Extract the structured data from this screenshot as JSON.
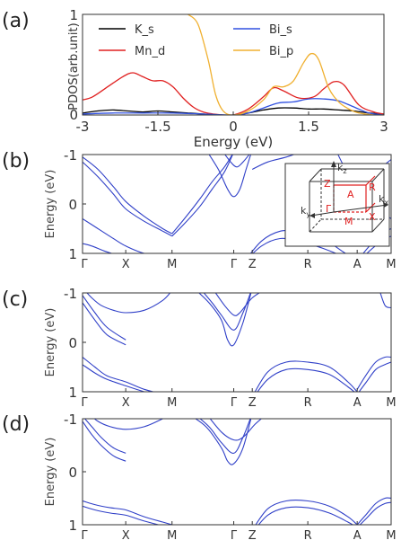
{
  "panels": {
    "a": {
      "label": "(a)",
      "chart_data": {
        "type": "line",
        "xlabel": "Energy (eV)",
        "ylabel": "PDOS(arb.unit)",
        "xlim": [
          -3,
          3
        ],
        "ylim": [
          0,
          1
        ],
        "xticks": [
          -3,
          -1.5,
          0,
          1.5,
          3
        ],
        "xtick_labels": [
          "-3",
          "-1.5",
          "0",
          "1.5",
          "3"
        ],
        "yticks": [
          0,
          1
        ],
        "ytick_labels": [
          "0",
          "1"
        ],
        "legend": "top, two columns",
        "series": [
          {
            "name": "K_s",
            "color": "#000000",
            "x": [
              -3,
              -2.7,
              -2.4,
              -2.1,
              -1.8,
              -1.5,
              -1.2,
              -0.9,
              -0.6,
              -0.3,
              0,
              0.3,
              0.6,
              0.9,
              1.2,
              1.5,
              1.8,
              2.1,
              2.4,
              2.7,
              3
            ],
            "y": [
              0.02,
              0.04,
              0.05,
              0.04,
              0.03,
              0.04,
              0.03,
              0.02,
              0.01,
              0.0,
              0.0,
              0.02,
              0.05,
              0.07,
              0.07,
              0.06,
              0.06,
              0.05,
              0.04,
              0.02,
              0.01
            ]
          },
          {
            "name": "Mn_d",
            "color": "#e02020",
            "x": [
              -3,
              -2.8,
              -2.5,
              -2.2,
              -2.0,
              -1.8,
              -1.6,
              -1.4,
              -1.2,
              -1.0,
              -0.8,
              -0.6,
              -0.4,
              -0.2,
              0,
              0.3,
              0.6,
              0.8,
              1.0,
              1.3,
              1.6,
              1.8,
              2.0,
              2.2,
              2.5,
              2.8,
              3
            ],
            "y": [
              0.15,
              0.18,
              0.28,
              0.38,
              0.42,
              0.38,
              0.34,
              0.34,
              0.28,
              0.17,
              0.08,
              0.03,
              0.01,
              0.0,
              0.0,
              0.06,
              0.18,
              0.27,
              0.24,
              0.17,
              0.18,
              0.26,
              0.33,
              0.3,
              0.1,
              0.03,
              0.01
            ]
          },
          {
            "name": "Bi_s",
            "color": "#3050e0",
            "x": [
              -3,
              -2.4,
              -1.8,
              -1.2,
              -0.6,
              0,
              0.3,
              0.6,
              0.9,
              1.2,
              1.5,
              1.8,
              2.1,
              2.4,
              2.7,
              3
            ],
            "y": [
              0.01,
              0.02,
              0.02,
              0.02,
              0.01,
              0.0,
              0.02,
              0.07,
              0.12,
              0.13,
              0.16,
              0.16,
              0.14,
              0.08,
              0.02,
              0.0
            ]
          },
          {
            "name": "Bi_p",
            "color": "#f0b030",
            "x": [
              -0.9,
              -0.7,
              -0.5,
              -0.35,
              -0.2,
              0,
              0.3,
              0.6,
              0.8,
              1.0,
              1.2,
              1.4,
              1.55,
              1.7,
              1.9,
              2.1,
              2.3,
              2.5,
              2.8,
              3
            ],
            "y": [
              1.0,
              0.9,
              0.55,
              0.2,
              0.04,
              0.0,
              0.04,
              0.15,
              0.28,
              0.28,
              0.34,
              0.52,
              0.61,
              0.55,
              0.27,
              0.13,
              0.06,
              0.02,
              0.0,
              0.0
            ]
          }
        ]
      }
    },
    "b": {
      "label": "(b)",
      "chart_data": {
        "type": "line",
        "ylabel": "Energy (eV)",
        "ylim": [
          -1,
          1
        ],
        "yticks": [
          -1,
          0,
          1
        ],
        "ytick_labels": [
          "-1",
          "0",
          "1"
        ],
        "kpoints": [
          "Γ",
          "X",
          "M",
          "Γ",
          "Z",
          "R",
          "A",
          "M"
        ],
        "kpos": [
          0,
          0.14,
          0.29,
          0.49,
          0.55,
          0.73,
          0.89,
          1.0
        ],
        "bands": [
          {
            "x": [
              0,
              0.05,
              0.1,
              0.14,
              0.2,
              0.26,
              0.29
            ],
            "y": [
              -0.95,
              -0.7,
              -0.35,
              -0.05,
              0.25,
              0.5,
              0.6
            ]
          },
          {
            "x": [
              0,
              0.05,
              0.1,
              0.14,
              0.2,
              0.26,
              0.29
            ],
            "y": [
              -0.85,
              -0.55,
              -0.2,
              0.1,
              0.35,
              0.55,
              0.65
            ]
          },
          {
            "x": [
              0,
              0.03,
              0.07,
              0.12,
              0.2,
              0.29
            ],
            "y": [
              0.8,
              0.85,
              0.95,
              1.05,
              1.2,
              1.3
            ]
          },
          {
            "x": [
              0,
              0.05,
              0.1,
              0.14,
              0.2,
              0.29
            ],
            "y": [
              0.3,
              0.5,
              0.7,
              0.85,
              1.0,
              1.1
            ]
          },
          {
            "x": [
              0.29,
              0.33,
              0.38,
              0.42,
              0.46,
              0.49
            ],
            "y": [
              0.6,
              0.3,
              -0.1,
              -0.45,
              -0.75,
              -1.05
            ]
          },
          {
            "x": [
              0.29,
              0.33,
              0.38,
              0.42,
              0.46,
              0.49
            ],
            "y": [
              0.65,
              0.4,
              0.05,
              -0.3,
              -0.65,
              -1.05
            ]
          },
          {
            "x": [
              0.4,
              0.44,
              0.47,
              0.49,
              0.51,
              0.53,
              0.55
            ],
            "y": [
              -1.1,
              -0.7,
              -0.3,
              -0.15,
              -0.3,
              -0.7,
              -1.1
            ]
          },
          {
            "x": [
              0.45,
              0.48,
              0.5,
              0.52,
              0.54,
              0.55
            ],
            "y": [
              -1.1,
              -0.85,
              -0.75,
              -0.85,
              -1.0,
              -1.1
            ]
          },
          {
            "x": [
              0.52,
              0.58,
              0.64,
              0.7,
              0.73,
              0.78,
              0.84,
              0.89
            ],
            "y": [
              1.2,
              0.75,
              0.55,
              0.55,
              0.6,
              0.7,
              0.95,
              1.15
            ]
          },
          {
            "x": [
              0.52,
              0.58,
              0.64,
              0.7,
              0.73,
              0.78,
              0.84,
              0.89
            ],
            "y": [
              1.2,
              0.85,
              0.7,
              0.75,
              0.8,
              0.9,
              1.05,
              1.2
            ]
          },
          {
            "x": [
              0.55,
              0.6,
              0.66,
              0.73
            ],
            "y": [
              -0.7,
              -0.85,
              -0.95,
              -1.1
            ]
          },
          {
            "x": [
              0.89,
              0.93,
              0.97,
              1.0
            ],
            "y": [
              1.15,
              0.85,
              0.6,
              0.5
            ]
          },
          {
            "x": [
              0.89,
              0.93,
              0.97,
              1.0
            ],
            "y": [
              1.2,
              0.95,
              0.75,
              0.65
            ]
          },
          {
            "x": [
              0.89,
              0.94,
              1.0
            ],
            "y": [
              -0.3,
              -0.6,
              -0.9
            ]
          },
          {
            "x": [
              0.82,
              0.86,
              0.89,
              0.94,
              1.0
            ],
            "y": [
              -1.1,
              -0.6,
              -0.3,
              0.0,
              0.3
            ]
          }
        ]
      },
      "inset": {
        "axis_labels": {
          "kz": "k",
          "kz_sub": "z",
          "ky": "k",
          "ky_sub": "y",
          "kx": "k",
          "kx_sub": "x"
        },
        "points": {
          "gamma": "Γ",
          "z": "Z",
          "a": "A",
          "r": "R",
          "m": "M",
          "x": "X"
        },
        "highlight_color": "#e02020"
      }
    },
    "c": {
      "label": "(c)",
      "chart_data": {
        "type": "line",
        "ylabel": "Energy (eV)",
        "ylim": [
          -1,
          1
        ],
        "yticks": [
          -1,
          0,
          1
        ],
        "ytick_labels": [
          "-1",
          "0",
          "1"
        ],
        "kpoints": [
          "Γ",
          "X",
          "M",
          "Γ",
          "Z",
          "R",
          "A",
          "M"
        ],
        "kpos": [
          0,
          0.14,
          0.29,
          0.49,
          0.55,
          0.73,
          0.89,
          1.0
        ],
        "bands": [
          {
            "x": [
              0,
              0.04,
              0.08,
              0.14
            ],
            "y": [
              -0.95,
              -0.6,
              -0.3,
              -0.05
            ]
          },
          {
            "x": [
              0,
              0.04,
              0.08,
              0.14
            ],
            "y": [
              -0.8,
              -0.45,
              -0.15,
              0.05
            ]
          },
          {
            "x": [
              0,
              0.03,
              0.06,
              0.1,
              0.14,
              0.2,
              0.26,
              0.29
            ],
            "y": [
              -1.1,
              -0.9,
              -0.75,
              -0.65,
              -0.6,
              -0.65,
              -0.85,
              -1.05
            ]
          },
          {
            "x": [
              0,
              0.04,
              0.08,
              0.14,
              0.2,
              0.26,
              0.29
            ],
            "y": [
              0.3,
              0.5,
              0.68,
              0.8,
              0.95,
              1.05,
              1.1
            ]
          },
          {
            "x": [
              0,
              0.04,
              0.08,
              0.14,
              0.2,
              0.26,
              0.29
            ],
            "y": [
              0.45,
              0.62,
              0.75,
              0.88,
              1.0,
              1.1,
              1.15
            ]
          },
          {
            "x": [
              0.36,
              0.41,
              0.45,
              0.47,
              0.49,
              0.52,
              0.55
            ],
            "y": [
              -1.1,
              -0.8,
              -0.45,
              -0.05,
              0.05,
              -0.4,
              -1.1
            ]
          },
          {
            "x": [
              0.38,
              0.42,
              0.45,
              0.49,
              0.52,
              0.55
            ],
            "y": [
              -1.1,
              -0.8,
              -0.55,
              -0.25,
              -0.6,
              -1.1
            ]
          },
          {
            "x": [
              0.42,
              0.46,
              0.49,
              0.51,
              0.55,
              0.6
            ],
            "y": [
              -1.1,
              -0.75,
              -0.55,
              -0.6,
              -0.9,
              -1.1
            ]
          },
          {
            "x": [
              0.55,
              0.6,
              0.66,
              0.73,
              0.8,
              0.86,
              0.89
            ],
            "y": [
              1.1,
              0.6,
              0.4,
              0.4,
              0.5,
              0.8,
              1.0
            ]
          },
          {
            "x": [
              0.55,
              0.6,
              0.66,
              0.73,
              0.8,
              0.86,
              0.89
            ],
            "y": [
              1.15,
              0.75,
              0.55,
              0.55,
              0.65,
              0.9,
              1.05
            ]
          },
          {
            "x": [
              0.89,
              0.92,
              0.95,
              0.98,
              1.0
            ],
            "y": [
              0.95,
              0.65,
              0.4,
              0.3,
              0.3
            ]
          },
          {
            "x": [
              0.89,
              0.92,
              0.95,
              0.98,
              1.0
            ],
            "y": [
              1.05,
              0.8,
              0.55,
              0.45,
              0.4
            ]
          },
          {
            "x": [
              0.96,
              0.98,
              1.0
            ],
            "y": [
              -1.1,
              -0.75,
              -0.7
            ]
          }
        ]
      }
    },
    "d": {
      "label": "(d)",
      "chart_data": {
        "type": "line",
        "ylabel": "Energy (eV)",
        "ylim": [
          -1,
          1
        ],
        "yticks": [
          -1,
          0,
          1
        ],
        "ytick_labels": [
          "-1",
          "0",
          "1"
        ],
        "kpoints": [
          "Γ",
          "X",
          "M",
          "Γ",
          "Z",
          "R",
          "A",
          "M"
        ],
        "kpos": [
          0,
          0.14,
          0.29,
          0.49,
          0.55,
          0.73,
          0.89,
          1.0
        ],
        "bands": [
          {
            "x": [
              0,
              0.03,
              0.06,
              0.1,
              0.14
            ],
            "y": [
              -1.05,
              -0.85,
              -0.65,
              -0.45,
              -0.35
            ]
          },
          {
            "x": [
              0,
              0.03,
              0.06,
              0.1,
              0.14
            ],
            "y": [
              -0.95,
              -0.7,
              -0.5,
              -0.3,
              -0.2
            ]
          },
          {
            "x": [
              0.02,
              0.05,
              0.09,
              0.14,
              0.2,
              0.26,
              0.29
            ],
            "y": [
              -1.1,
              -0.95,
              -0.85,
              -0.8,
              -0.85,
              -1.0,
              -1.1
            ]
          },
          {
            "x": [
              0,
              0.04,
              0.09,
              0.14,
              0.2,
              0.26,
              0.29
            ],
            "y": [
              0.55,
              0.62,
              0.68,
              0.72,
              0.85,
              0.95,
              1.0
            ]
          },
          {
            "x": [
              0,
              0.04,
              0.09,
              0.14,
              0.2,
              0.26,
              0.29
            ],
            "y": [
              0.65,
              0.72,
              0.78,
              0.82,
              0.93,
              1.02,
              1.05
            ]
          },
          {
            "x": [
              0.34,
              0.4,
              0.45,
              0.47,
              0.49,
              0.52,
              0.55
            ],
            "y": [
              -1.1,
              -0.85,
              -0.45,
              -0.2,
              -0.15,
              -0.45,
              -1.1
            ]
          },
          {
            "x": [
              0.36,
              0.41,
              0.45,
              0.49,
              0.52,
              0.55
            ],
            "y": [
              -1.1,
              -0.85,
              -0.55,
              -0.35,
              -0.65,
              -1.1
            ]
          },
          {
            "x": [
              0.4,
              0.45,
              0.49,
              0.52,
              0.56,
              0.6
            ],
            "y": [
              -1.1,
              -0.75,
              -0.6,
              -0.65,
              -0.9,
              -1.1
            ]
          },
          {
            "x": [
              0.55,
              0.6,
              0.66,
              0.73,
              0.8,
              0.86,
              0.89
            ],
            "y": [
              1.1,
              0.7,
              0.55,
              0.55,
              0.65,
              0.85,
              1.0
            ]
          },
          {
            "x": [
              0.55,
              0.6,
              0.66,
              0.73,
              0.8,
              0.86,
              0.89
            ],
            "y": [
              1.15,
              0.82,
              0.68,
              0.68,
              0.78,
              0.95,
              1.05
            ]
          },
          {
            "x": [
              0.89,
              0.92,
              0.95,
              0.98,
              1.0
            ],
            "y": [
              1.0,
              0.8,
              0.6,
              0.5,
              0.5
            ]
          },
          {
            "x": [
              0.89,
              0.92,
              0.95,
              0.98,
              1.0
            ],
            "y": [
              1.05,
              0.88,
              0.7,
              0.6,
              0.58
            ]
          }
        ]
      }
    }
  }
}
